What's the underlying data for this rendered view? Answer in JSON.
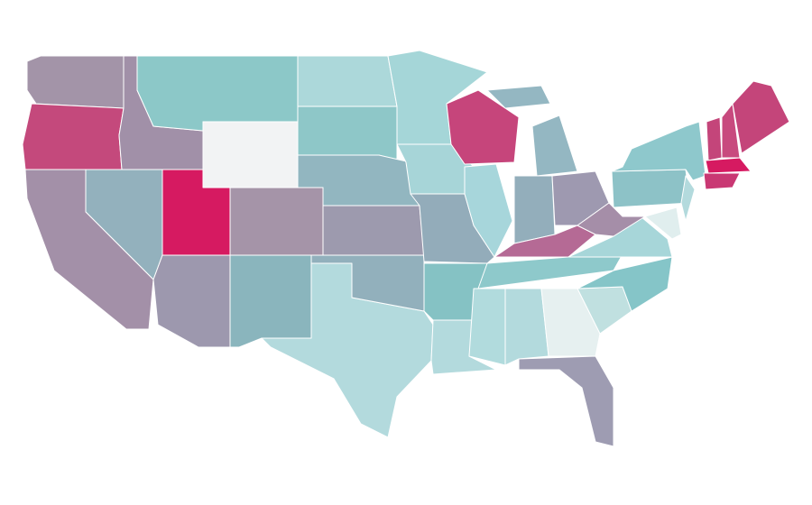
{
  "map": {
    "regions": [
      {
        "color": "#a394a8"
      },
      {
        "color": "#c4497c"
      },
      {
        "color": "#a190a8"
      },
      {
        "color": "#8cc8c8"
      },
      {
        "color": "#f2f3f4"
      },
      {
        "color": "#acd8da"
      },
      {
        "color": "#8ec7c8"
      },
      {
        "color": "#92b6c0"
      },
      {
        "color": "#a594a8"
      },
      {
        "color": "#d61a61"
      },
      {
        "color": "#93b1bd"
      },
      {
        "color": "#a390a8"
      },
      {
        "color": "#9d98ae"
      },
      {
        "color": "#8ab5bd"
      },
      {
        "color": "#b3dadd"
      },
      {
        "color": "#92b0bc"
      },
      {
        "color": "#9d9aae"
      },
      {
        "color": "#a5d6d8"
      },
      {
        "color": "#a7d5d8"
      },
      {
        "color": "#93acba"
      },
      {
        "color": "#85c2c4"
      },
      {
        "color": "#b3dadd"
      },
      {
        "color": "#c6457b"
      },
      {
        "color": "#a7d6db"
      },
      {
        "color": "#94b7c2"
      },
      {
        "color": "#94b7c2"
      },
      {
        "color": "#93aebb"
      },
      {
        "color": "#9e99b0"
      },
      {
        "color": "#b56a95"
      },
      {
        "color": "#8ec9cb"
      },
      {
        "color": "#b1dbdd"
      },
      {
        "color": "#b3dadd"
      },
      {
        "color": "#e6f0f0"
      },
      {
        "color": "#9e9cb2"
      },
      {
        "color": "#c0e0e0"
      },
      {
        "color": "#85c5c8"
      },
      {
        "color": "#a7d6d9"
      },
      {
        "color": "#a58ea8"
      },
      {
        "color": "#8dc2c7"
      },
      {
        "color": "#8ec8cc"
      },
      {
        "color": "#b3dadd"
      },
      {
        "color": "#e0eeee"
      },
      {
        "color": "#c4457a"
      },
      {
        "color": "#c84a7e"
      },
      {
        "color": "#c4457a"
      },
      {
        "color": "#d61a61"
      },
      {
        "color": "#c93873"
      }
    ]
  }
}
